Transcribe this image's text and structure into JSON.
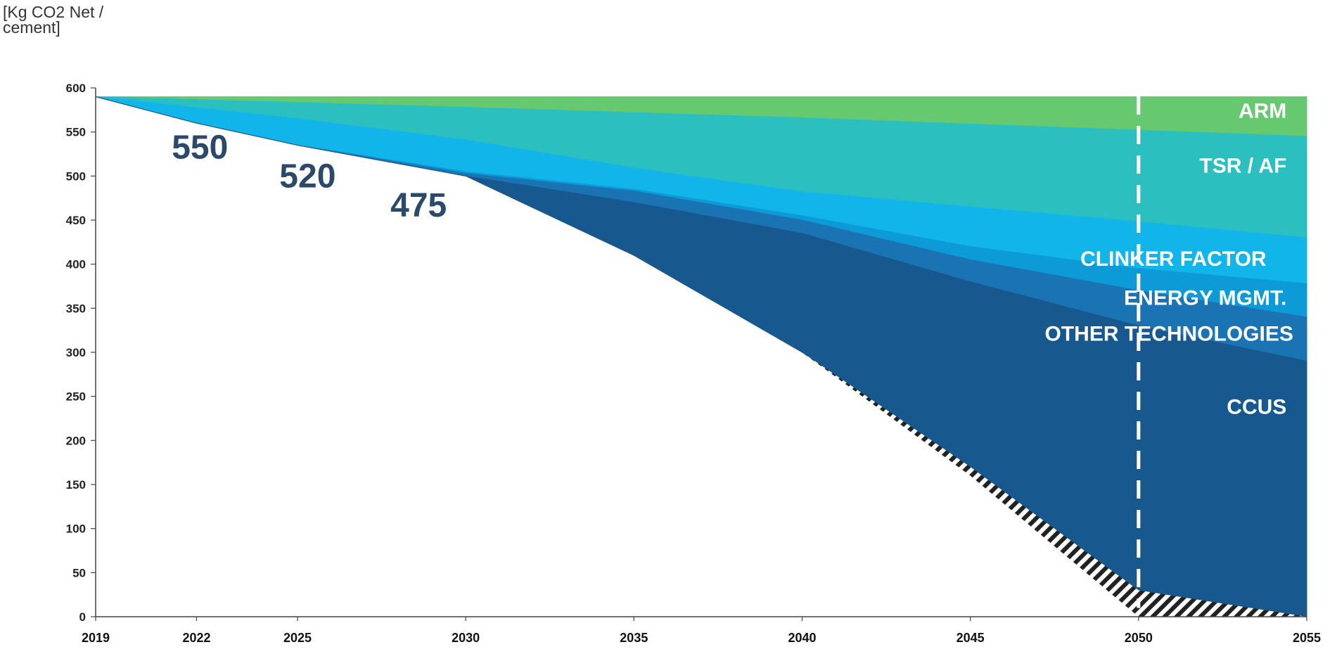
{
  "chart_data": {
    "type": "area",
    "ylabel": "[Kg CO2 Net /\ncement]",
    "xlabel": "",
    "title": "",
    "ylim": [
      0,
      600
    ],
    "yticks": [
      0,
      50,
      100,
      150,
      200,
      250,
      300,
      350,
      400,
      450,
      500,
      550,
      600
    ],
    "xlim": [
      2019,
      2055
    ],
    "xticks": [
      {
        "label": "2019",
        "value": 2019
      },
      {
        "label": "2022",
        "value": 2022
      },
      {
        "label": "2025",
        "value": 2025
      },
      {
        "label": "2030",
        "value": 2030
      },
      {
        "label": "2035",
        "value": 2035
      },
      {
        "label": "2040",
        "value": 2040
      },
      {
        "label": "2045",
        "value": 2045
      },
      {
        "label": "2050",
        "value": 2050
      },
      {
        "label": "2055",
        "value": 2055
      }
    ],
    "layers": [
      {
        "name": "ARM",
        "color": "#66c96f",
        "upper": [
          [
            2019,
            590
          ],
          [
            2055,
            590
          ]
        ],
        "lower": [
          [
            2019,
            590
          ],
          [
            2030,
            578
          ],
          [
            2040,
            566
          ],
          [
            2050,
            552
          ],
          [
            2055,
            545
          ]
        ]
      },
      {
        "name": "TSR / AF",
        "color": "#2bbfbf",
        "upper": [
          [
            2019,
            590
          ],
          [
            2030,
            578
          ],
          [
            2040,
            566
          ],
          [
            2050,
            552
          ],
          [
            2055,
            545
          ]
        ],
        "lower": [
          [
            2019,
            590
          ],
          [
            2025,
            565
          ],
          [
            2030,
            541
          ],
          [
            2035,
            509
          ],
          [
            2040,
            482
          ],
          [
            2050,
            448
          ],
          [
            2055,
            430
          ]
        ]
      },
      {
        "name": "CLINKER FACTOR",
        "color": "#12b5ea",
        "upper": [
          [
            2019,
            590
          ],
          [
            2025,
            565
          ],
          [
            2030,
            541
          ],
          [
            2035,
            509
          ],
          [
            2040,
            482
          ],
          [
            2050,
            448
          ],
          [
            2055,
            430
          ]
        ],
        "lower": [
          [
            2019,
            590
          ],
          [
            2022,
            560
          ],
          [
            2025,
            535
          ],
          [
            2030,
            505
          ],
          [
            2035,
            485
          ],
          [
            2040,
            455
          ],
          [
            2045,
            420
          ],
          [
            2050,
            395
          ],
          [
            2055,
            378
          ]
        ]
      },
      {
        "name": "ENERGY MGMT.",
        "color": "#0d9bd8",
        "upper": [
          [
            2019,
            590
          ],
          [
            2022,
            560
          ],
          [
            2025,
            535
          ],
          [
            2030,
            505
          ],
          [
            2035,
            485
          ],
          [
            2040,
            455
          ],
          [
            2045,
            420
          ],
          [
            2050,
            395
          ],
          [
            2055,
            378
          ]
        ],
        "lower": [
          [
            2019,
            590
          ],
          [
            2022,
            560
          ],
          [
            2025,
            535
          ],
          [
            2030,
            503
          ],
          [
            2035,
            483
          ],
          [
            2040,
            450
          ],
          [
            2045,
            405
          ],
          [
            2050,
            370
          ],
          [
            2055,
            340
          ]
        ]
      },
      {
        "name": "OTHER TECHNOLOGIES",
        "color": "#1a74b4",
        "upper": [
          [
            2019,
            590
          ],
          [
            2022,
            560
          ],
          [
            2025,
            535
          ],
          [
            2030,
            503
          ],
          [
            2035,
            483
          ],
          [
            2040,
            450
          ],
          [
            2045,
            405
          ],
          [
            2050,
            370
          ],
          [
            2055,
            340
          ]
        ],
        "lower": [
          [
            2019,
            590
          ],
          [
            2022,
            560
          ],
          [
            2025,
            535
          ],
          [
            2030,
            500
          ],
          [
            2035,
            470
          ],
          [
            2040,
            435
          ],
          [
            2045,
            380
          ],
          [
            2050,
            330
          ],
          [
            2055,
            290
          ]
        ]
      },
      {
        "name": "CCUS",
        "color": "#17588f",
        "upper": [
          [
            2019,
            590
          ],
          [
            2022,
            560
          ],
          [
            2025,
            535
          ],
          [
            2030,
            500
          ],
          [
            2035,
            470
          ],
          [
            2040,
            435
          ],
          [
            2045,
            380
          ],
          [
            2050,
            330
          ],
          [
            2055,
            290
          ]
        ],
        "lower": [
          [
            2019,
            590
          ],
          [
            2022,
            560
          ],
          [
            2025,
            535
          ],
          [
            2030,
            500
          ],
          [
            2035,
            410
          ],
          [
            2040,
            300
          ],
          [
            2045,
            170
          ],
          [
            2050,
            30
          ],
          [
            2055,
            0
          ]
        ]
      }
    ],
    "hatched_region": {
      "upper": [
        [
          2040,
          300
        ],
        [
          2045,
          170
        ],
        [
          2050,
          30
        ],
        [
          2055,
          0
        ]
      ],
      "lower": [
        [
          2040,
          300
        ],
        [
          2045,
          160
        ],
        [
          2050,
          0
        ],
        [
          2055,
          0
        ]
      ]
    },
    "reference_line": {
      "x": 2050,
      "style": "dashed",
      "color": "#ffffff"
    },
    "layer_labels": [
      {
        "text": "ARM",
        "x": 2054.4,
        "y": 566
      },
      {
        "text": "TSR / AF",
        "x": 2054.4,
        "y": 504
      },
      {
        "text": "CLINKER FACTOR",
        "x": 2053.8,
        "y": 398
      },
      {
        "text": "ENERGY MGMT.",
        "x": 2054.4,
        "y": 354
      },
      {
        "text": "OTHER TECHNOLOGIES",
        "x": 2054.6,
        "y": 313
      },
      {
        "text": "CCUS",
        "x": 2054.4,
        "y": 230
      }
    ],
    "milestones": [
      {
        "text": "550",
        "x": 2022.1,
        "y": 520
      },
      {
        "text": "520",
        "x": 2025.3,
        "y": 487
      },
      {
        "text": "475",
        "x": 2028.6,
        "y": 454
      }
    ]
  }
}
